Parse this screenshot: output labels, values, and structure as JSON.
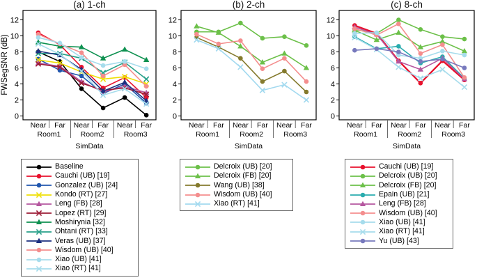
{
  "axis": {
    "ylabel": "FWSegSNR (dB)",
    "xlabel": "SimData",
    "near_far": [
      "Near",
      "Far"
    ],
    "rooms": [
      "Room1",
      "Room2",
      "Room3"
    ],
    "ytick_labels": [
      "0",
      "2",
      "4",
      "6",
      "8",
      "10",
      "12"
    ]
  },
  "chart_data": [
    {
      "type": "line",
      "title": "(a) 1-ch",
      "ylabel": "FWSegSNR (dB)",
      "xlabel": "SimData",
      "categories": [
        "Room1 Near",
        "Room1 Far",
        "Room2 Near",
        "Room2 Far",
        "Room3 Near",
        "Room3 Far"
      ],
      "ylim": [
        0,
        13
      ],
      "yticks": [
        0,
        2,
        4,
        6,
        8,
        10,
        12
      ],
      "grid": false,
      "legend_position": "below-left",
      "series": [
        {
          "name": "Baseline",
          "color": "#000000",
          "marker": "circle",
          "values": [
            8.0,
            6.8,
            3.4,
            1.0,
            2.3,
            0.1
          ]
        },
        {
          "name": "Cauchi (UB) [19]",
          "color": "#e8112d",
          "marker": "circle",
          "values": [
            10.4,
            8.9,
            6.1,
            3.5,
            4.8,
            2.3
          ]
        },
        {
          "name": "Gonzalez (UB) [24]",
          "color": "#2056ae",
          "marker": "circle",
          "values": [
            7.1,
            5.7,
            5.0,
            2.8,
            4.0,
            1.6
          ]
        },
        {
          "name": "Kondo (RT) [27]",
          "color": "#efdf05",
          "marker": "x",
          "values": [
            7.0,
            6.6,
            5.5,
            4.6,
            4.9,
            4.0
          ]
        },
        {
          "name": "Leng (FB) [28]",
          "color": "#b5579f",
          "marker": "triangle",
          "values": [
            6.6,
            6.2,
            4.3,
            3.0,
            3.7,
            2.9
          ]
        },
        {
          "name": "Lopez (RT) [29]",
          "color": "#9c1b35",
          "marker": "x",
          "values": [
            6.5,
            6.1,
            4.1,
            3.2,
            3.5,
            2.7
          ]
        },
        {
          "name": "Moshirynia [32]",
          "color": "#0e9150",
          "marker": "triangle",
          "values": [
            9.2,
            8.7,
            8.6,
            7.2,
            8.3,
            7.0
          ]
        },
        {
          "name": "Ohtani (RT) [33]",
          "color": "#27a089",
          "marker": "x",
          "values": [
            7.8,
            7.8,
            7.2,
            5.4,
            6.7,
            4.6
          ]
        },
        {
          "name": "Veras (UB) [37]",
          "color": "#1d3080",
          "marker": "triangle",
          "values": [
            8.1,
            7.6,
            5.8,
            3.1,
            4.2,
            1.9
          ]
        },
        {
          "name": "Wisdom (UB) [40]",
          "color": "#f48e8e",
          "marker": "circle",
          "values": [
            10.2,
            9.0,
            7.9,
            5.0,
            6.4,
            3.7
          ]
        },
        {
          "name": "Xiao (UB) [41]",
          "color": "#a6dcec",
          "marker": "circle",
          "values": [
            9.8,
            9.1,
            7.3,
            6.3,
            6.8,
            5.9
          ]
        },
        {
          "name": "Xiao (RT) [41]",
          "color": "#a6dcec",
          "marker": "x",
          "values": [
            9.0,
            7.7,
            5.6,
            2.6,
            3.4,
            1.5
          ]
        }
      ]
    },
    {
      "type": "line",
      "title": "(b) 2-ch",
      "ylabel": "",
      "xlabel": "SimData",
      "categories": [
        "Room1 Near",
        "Room1 Far",
        "Room2 Near",
        "Room2 Far",
        "Room3 Near",
        "Room3 Far"
      ],
      "ylim": [
        0,
        13
      ],
      "yticks": [
        0,
        2,
        4,
        6,
        8,
        10,
        12
      ],
      "grid": false,
      "legend_position": "below-left",
      "series": [
        {
          "name": "Delcroix (UB) [20]",
          "color": "#6cc049",
          "marker": "circle",
          "values": [
            10.5,
            10.5,
            11.6,
            9.7,
            9.9,
            8.8
          ]
        },
        {
          "name": "Delcroix (FB) [20]",
          "color": "#6cc049",
          "marker": "triangle",
          "values": [
            11.2,
            10.4,
            8.7,
            6.7,
            7.8,
            6.0
          ]
        },
        {
          "name": "Wang (UB) [38]",
          "color": "#847a2d",
          "marker": "circle",
          "values": [
            9.8,
            8.6,
            7.2,
            4.3,
            5.6,
            3.0
          ]
        },
        {
          "name": "Wisdom (UB) [40]",
          "color": "#f48e8e",
          "marker": "circle",
          "values": [
            10.2,
            9.0,
            9.4,
            5.9,
            7.2,
            4.3
          ]
        },
        {
          "name": "Xiao (RT) [41]",
          "color": "#a2d9ef",
          "marker": "x",
          "values": [
            9.5,
            8.4,
            6.1,
            3.2,
            3.9,
            2.0
          ]
        }
      ]
    },
    {
      "type": "line",
      "title": "(c) 8-ch",
      "ylabel": "",
      "xlabel": "SimData",
      "categories": [
        "Room1 Near",
        "Room1 Far",
        "Room2 Near",
        "Room2 Far",
        "Room3 Near",
        "Room3 Far"
      ],
      "ylim": [
        0,
        13
      ],
      "yticks": [
        0,
        2,
        4,
        6,
        8,
        10,
        12
      ],
      "grid": false,
      "legend_position": "below-left",
      "series": [
        {
          "name": "Cauchi (UB) [19]",
          "color": "#e8112d",
          "marker": "circle",
          "width": 2.3,
          "values": [
            11.3,
            10.3,
            6.9,
            4.1,
            6.9,
            4.5
          ]
        },
        {
          "name": "Delcroix (UB) [20]",
          "color": "#6cc049",
          "marker": "circle",
          "values": [
            10.8,
            10.3,
            12.0,
            10.8,
            9.9,
            9.6
          ]
        },
        {
          "name": "Delcroix (FB) [20]",
          "color": "#6cc049",
          "marker": "triangle",
          "values": [
            10.7,
            9.5,
            10.4,
            8.6,
            9.3,
            8.1
          ]
        },
        {
          "name": "Epain (UB) [21]",
          "color": "#2aacae",
          "marker": "circle",
          "values": [
            9.9,
            8.4,
            8.7,
            6.6,
            7.4,
            4.7
          ]
        },
        {
          "name": "Leng (FB) [28]",
          "color": "#b5579f",
          "marker": "triangle",
          "values": [
            11.1,
            10.2,
            6.8,
            5.8,
            7.2,
            4.6
          ]
        },
        {
          "name": "Wisdom (UB) [40]",
          "color": "#f48e8e",
          "marker": "circle",
          "values": [
            10.9,
            10.1,
            11.5,
            7.8,
            8.9,
            4.8
          ]
        },
        {
          "name": "Xiao (UB) [41]",
          "color": "#a6dcec",
          "marker": "circle",
          "values": [
            10.3,
            10.4,
            7.6,
            7.2,
            8.1,
            7.6
          ]
        },
        {
          "name": "Xiao (RT) [41]",
          "color": "#a6dcec",
          "marker": "x",
          "values": [
            9.8,
            8.3,
            6.1,
            4.7,
            5.8,
            3.6
          ]
        },
        {
          "name": "Yu (UB) [43]",
          "color": "#7779bd",
          "marker": "circle",
          "values": [
            8.2,
            8.4,
            8.0,
            6.8,
            7.1,
            6.0
          ]
        }
      ]
    }
  ]
}
